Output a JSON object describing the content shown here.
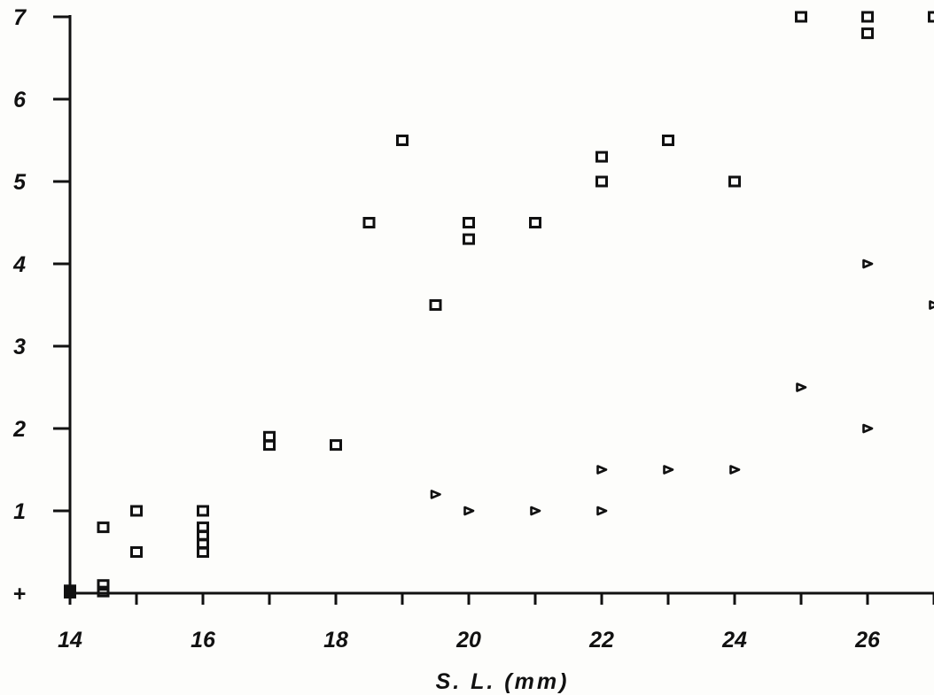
{
  "chart_data": {
    "type": "scatter",
    "xlabel": "S. L. (mm)",
    "ylabel": "",
    "xlim": [
      14,
      27
    ],
    "ylim": [
      0,
      7
    ],
    "x_ticks": [
      14,
      15,
      16,
      17,
      18,
      19,
      20,
      21,
      22,
      23,
      24,
      25,
      26,
      27
    ],
    "x_tick_labels": [
      "14",
      "16",
      "18",
      "20",
      "22",
      "24",
      "26"
    ],
    "x_tick_label_values": [
      14,
      16,
      18,
      20,
      22,
      24,
      26
    ],
    "y_ticks": [
      0,
      1,
      2,
      3,
      4,
      5,
      6,
      7
    ],
    "y_tick_labels": [
      "+",
      "1",
      "2",
      "3",
      "4",
      "5",
      "6",
      "7"
    ],
    "y_tick_label_values": [
      0,
      1,
      2,
      3,
      4,
      5,
      6,
      7
    ],
    "grid": false,
    "series": [
      {
        "marker": "square",
        "points": [
          [
            14.5,
            0.8
          ],
          [
            14.5,
            0.1
          ],
          [
            14.5,
            0.02
          ],
          [
            15,
            1.0
          ],
          [
            15,
            0.5
          ],
          [
            16,
            1.0
          ],
          [
            16,
            0.8
          ],
          [
            16,
            0.7
          ],
          [
            16,
            0.6
          ],
          [
            16,
            0.5
          ],
          [
            17,
            1.9
          ],
          [
            17,
            1.8
          ],
          [
            18,
            1.8
          ],
          [
            18.5,
            4.5
          ],
          [
            19,
            5.5
          ],
          [
            19.5,
            3.5
          ],
          [
            20,
            4.5
          ],
          [
            20,
            4.3
          ],
          [
            21,
            4.5
          ],
          [
            22,
            5.3
          ],
          [
            22,
            5.0
          ],
          [
            23,
            5.5
          ],
          [
            24,
            5.0
          ],
          [
            25,
            7.0
          ],
          [
            26,
            7.0
          ],
          [
            26,
            6.8
          ],
          [
            27,
            7.0
          ]
        ]
      },
      {
        "marker": "triangle",
        "points": [
          [
            19.5,
            1.2
          ],
          [
            20,
            1.0
          ],
          [
            21,
            1.0
          ],
          [
            22,
            1.5
          ],
          [
            22,
            1.0
          ],
          [
            23,
            1.5
          ],
          [
            24,
            1.5
          ],
          [
            25,
            2.5
          ],
          [
            26,
            4.0
          ],
          [
            26,
            2.0
          ],
          [
            27,
            3.5
          ]
        ]
      },
      {
        "marker": "filled",
        "points": [
          [
            14,
            0.0
          ],
          [
            14,
            0.04
          ]
        ]
      }
    ]
  }
}
